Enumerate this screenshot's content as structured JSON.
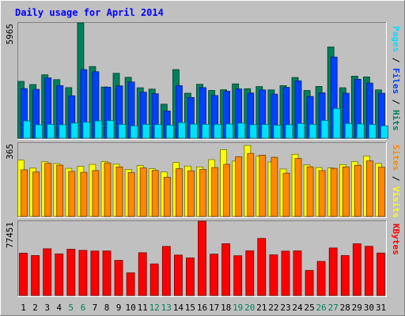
{
  "chart_data": {
    "type": "bar",
    "title": "Daily usage for April 2014",
    "categories": [
      "1",
      "2",
      "3",
      "4",
      "5",
      "6",
      "7",
      "8",
      "9",
      "10",
      "11",
      "12",
      "13",
      "14",
      "15",
      "16",
      "17",
      "18",
      "19",
      "20",
      "21",
      "22",
      "23",
      "24",
      "25",
      "26",
      "27",
      "28",
      "29",
      "30",
      "31"
    ],
    "weekend_days": [
      "5",
      "6",
      "12",
      "13",
      "19",
      "20",
      "26",
      "27"
    ],
    "panels": [
      {
        "id": "hits-files-pages",
        "max_label": "5965",
        "ymax": 5965,
        "series": [
          {
            "name": "Hits",
            "color": "#00805c",
            "values": [
              2940,
              2780,
              3280,
              3030,
              2620,
              5965,
              3710,
              2650,
              3360,
              3150,
              2610,
              2540,
              1760,
              3550,
              2330,
              2790,
              2470,
              2510,
              2810,
              2560,
              2670,
              2500,
              2720,
              3140,
              2470,
              2680,
              4720,
              2610,
              3210,
              3170,
              2500
            ]
          },
          {
            "name": "Files",
            "color": "#0040ff",
            "values": [
              2570,
              2530,
              3120,
              2720,
              2200,
              3550,
              3440,
              2640,
              2710,
              2910,
              2380,
              2300,
              1410,
              2720,
              2110,
              2620,
              2210,
              2430,
              2550,
              2340,
              2500,
              2280,
              2630,
              2970,
              2160,
              2350,
              4200,
              2330,
              3050,
              2850,
              2330
            ]
          },
          {
            "name": "Pages",
            "color": "#00e0ff",
            "values": [
              900,
              700,
              720,
              700,
              790,
              830,
              900,
              910,
              720,
              640,
              720,
              710,
              680,
              810,
              730,
              720,
              720,
              740,
              780,
              700,
              710,
              680,
              700,
              760,
              720,
              920,
              1540,
              760,
              740,
              710,
              640
            ]
          }
        ]
      },
      {
        "id": "visits-sites",
        "max_label": "365",
        "ymax": 365,
        "series": [
          {
            "name": "Visits",
            "color": "#ffff00",
            "values": [
              280,
              240,
              272,
              263,
              239,
              249,
              259,
              273,
              260,
              234,
              253,
              237,
              221,
              268,
              250,
              246,
              282,
              332,
              275,
              353,
              300,
              271,
              236,
              309,
              256,
              243,
              241,
              258,
              272,
              300,
              263
            ]
          },
          {
            "name": "Sites",
            "color": "#ff8800",
            "values": [
              232,
              221,
              264,
              255,
              224,
              219,
              228,
              266,
              246,
              218,
              241,
              229,
              195,
              237,
              227,
              234,
              243,
              259,
              297,
              313,
              304,
              294,
              215,
              288,
              247,
              228,
              239,
              246,
              254,
              276,
              245
            ]
          }
        ]
      },
      {
        "id": "kbytes",
        "max_label": "77451",
        "ymax": 77451,
        "series": [
          {
            "name": "KBytes",
            "color": "#ff0000",
            "values": [
              44050,
              41580,
              48660,
              43380,
              48170,
              47030,
              46280,
              46420,
              36600,
              23680,
              44580,
              32890,
              51190,
              42090,
              39140,
              77451,
              43110,
              54000,
              41460,
              46590,
              59460,
              42310,
              46210,
              46460,
              26100,
              35540,
              49480,
              41650,
              53850,
              51280,
              44260
            ]
          }
        ]
      }
    ],
    "ylabels": [
      {
        "parts": [
          {
            "text": "Pages",
            "color": "#00e0ff"
          },
          {
            "text": " / ",
            "color": "#000000"
          },
          {
            "text": "Files",
            "color": "#0040ff"
          },
          {
            "text": " / ",
            "color": "#000000"
          },
          {
            "text": "Hits",
            "color": "#00805c"
          }
        ]
      },
      {
        "parts": [
          {
            "text": "Sites",
            "color": "#ff8800"
          },
          {
            "text": " / ",
            "color": "#000000"
          },
          {
            "text": "Visits",
            "color": "#ffff00"
          }
        ]
      },
      {
        "parts": [
          {
            "text": "KBytes",
            "color": "#ff0000"
          }
        ]
      }
    ],
    "colors": {
      "background": "#c0c0c0",
      "title": "#0000ff",
      "weekday_label": "#000000",
      "weekend_label": "#00805c"
    }
  }
}
